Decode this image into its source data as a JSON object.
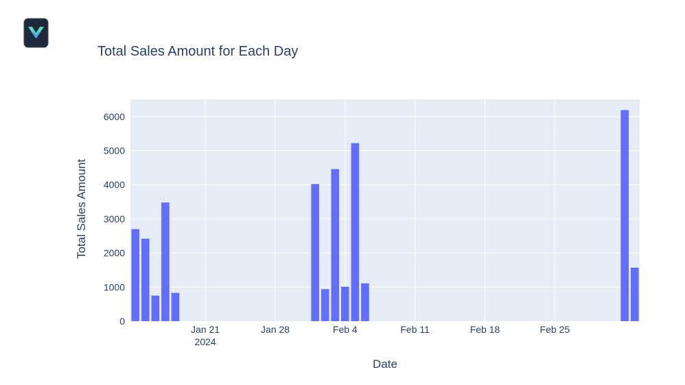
{
  "chart_data": {
    "type": "bar",
    "title": "Total Sales Amount for Each Day",
    "xlabel": "Date",
    "ylabel": "Total Sales Amount",
    "ylim": [
      0,
      6500
    ],
    "xlim": [
      "2024-01-13T12:00",
      "2024-03-04T12:00"
    ],
    "yticks": [
      0,
      1000,
      2000,
      3000,
      4000,
      5000,
      6000
    ],
    "xticks": [
      {
        "date": "2024-01-21",
        "label": "Jan 21",
        "sublabel": "2024"
      },
      {
        "date": "2024-01-28",
        "label": "Jan 28",
        "sublabel": ""
      },
      {
        "date": "2024-02-04",
        "label": "Feb 4",
        "sublabel": ""
      },
      {
        "date": "2024-02-11",
        "label": "Feb 11",
        "sublabel": ""
      },
      {
        "date": "2024-02-18",
        "label": "Feb 18",
        "sublabel": ""
      },
      {
        "date": "2024-02-25",
        "label": "Feb 25",
        "sublabel": ""
      }
    ],
    "grid": true,
    "bar_color": "#636efa",
    "plot_bg": "#e5ecf6",
    "x": [
      "2024-01-14",
      "2024-01-15",
      "2024-01-16",
      "2024-01-17",
      "2024-01-18",
      "2024-02-01",
      "2024-02-02",
      "2024-02-03",
      "2024-02-04",
      "2024-02-05",
      "2024-02-06",
      "2024-03-03",
      "2024-03-04"
    ],
    "values": [
      2700,
      2420,
      750,
      3480,
      830,
      4020,
      940,
      4460,
      1010,
      5220,
      1110,
      6190,
      1570
    ]
  }
}
